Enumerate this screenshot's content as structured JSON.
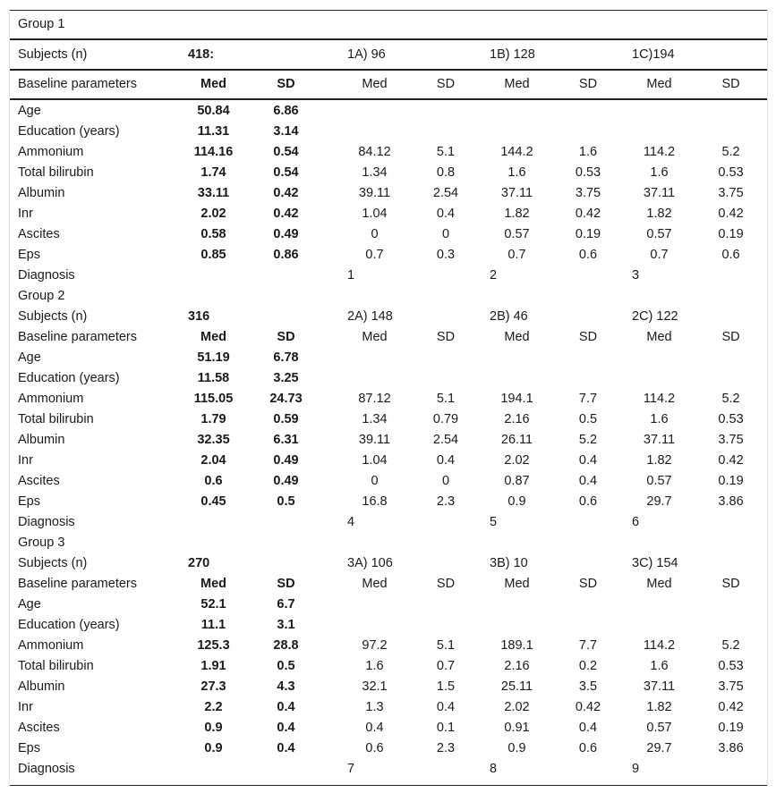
{
  "table": {
    "groups": [
      {
        "title": "Group 1",
        "subjects_label": "Subjects (n)",
        "subjects_total": "418:",
        "subgroups": [
          "1A) 96",
          "1B) 128",
          "1C)194"
        ],
        "header": {
          "label": "Baseline parameters",
          "med": "Med",
          "sd": "SD",
          "sub_med": "Med",
          "sub_sd": "SD"
        },
        "rows": [
          {
            "label": "Age",
            "med": "50.84",
            "sd": "6.86",
            "a_med": "",
            "a_sd": "",
            "b_med": "",
            "b_sd": "",
            "c_med": "",
            "c_sd": ""
          },
          {
            "label": "Education (years)",
            "med": "11.31",
            "sd": "3.14",
            "a_med": "",
            "a_sd": "",
            "b_med": "",
            "b_sd": "",
            "c_med": "",
            "c_sd": ""
          },
          {
            "label": "Ammonium",
            "med": "114.16",
            "sd": "0.54",
            "a_med": "84.12",
            "a_sd": "5.1",
            "b_med": "144.2",
            "b_sd": "1.6",
            "c_med": "114.2",
            "c_sd": "5.2"
          },
          {
            "label": "Total bilirubin",
            "med": "1.74",
            "sd": "0.54",
            "a_med": "1.34",
            "a_sd": "0.8",
            "b_med": "1.6",
            "b_sd": "0.53",
            "c_med": "1.6",
            "c_sd": "0.53"
          },
          {
            "label": "Albumin",
            "med": "33.11",
            "sd": "0.42",
            "a_med": "39.11",
            "a_sd": "2.54",
            "b_med": "37.11",
            "b_sd": "3.75",
            "c_med": "37.11",
            "c_sd": "3.75"
          },
          {
            "label": "Inr",
            "med": "2.02",
            "sd": "0.42",
            "a_med": "1.04",
            "a_sd": "0.4",
            "b_med": "1.82",
            "b_sd": "0.42",
            "c_med": "1.82",
            "c_sd": "0.42"
          },
          {
            "label": "Ascites",
            "med": "0.58",
            "sd": "0.49",
            "a_med": "0",
            "a_sd": "0",
            "b_med": "0.57",
            "b_sd": "0.19",
            "c_med": "0.57",
            "c_sd": "0.19"
          },
          {
            "label": "Eps",
            "med": "0.85",
            "sd": "0.86",
            "a_med": "0.7",
            "a_sd": "0.3",
            "b_med": "0.7",
            "b_sd": "0.6",
            "c_med": "0.7",
            "c_sd": "0.6"
          }
        ],
        "diagnosis": {
          "label": "Diagnosis",
          "a": "1",
          "b": "2",
          "c": "3"
        }
      },
      {
        "title": "Group 2",
        "subjects_label": "Subjects (n)",
        "subjects_total": "316",
        "subgroups": [
          "2A) 148",
          "2B) 46",
          "2C) 122"
        ],
        "header": {
          "label": "Baseline parameters",
          "med": "Med",
          "sd": "SD",
          "sub_med": "Med",
          "sub_sd": "SD"
        },
        "rows": [
          {
            "label": "Age",
            "med": "51.19",
            "sd": "6.78",
            "a_med": "",
            "a_sd": "",
            "b_med": "",
            "b_sd": "",
            "c_med": "",
            "c_sd": ""
          },
          {
            "label": "Education (years)",
            "med": "11.58",
            "sd": "3.25",
            "a_med": "",
            "a_sd": "",
            "b_med": "",
            "b_sd": "",
            "c_med": "",
            "c_sd": ""
          },
          {
            "label": "Ammonium",
            "med": "115.05",
            "sd": "24.73",
            "a_med": "87.12",
            "a_sd": "5.1",
            "b_med": "194.1",
            "b_sd": "7.7",
            "c_med": "114.2",
            "c_sd": "5.2"
          },
          {
            "label": "Total bilirubin",
            "med": "1.79",
            "sd": "0.59",
            "a_med": "1.34",
            "a_sd": "0.79",
            "b_med": "2.16",
            "b_sd": "0.5",
            "c_med": "1.6",
            "c_sd": "0.53"
          },
          {
            "label": "Albumin",
            "med": "32.35",
            "sd": "6.31",
            "a_med": "39.11",
            "a_sd": "2.54",
            "b_med": "26.11",
            "b_sd": "5.2",
            "c_med": "37.11",
            "c_sd": "3.75"
          },
          {
            "label": "Inr",
            "med": "2.04",
            "sd": "0.49",
            "a_med": "1.04",
            "a_sd": "0.4",
            "b_med": "2.02",
            "b_sd": "0.4",
            "c_med": "1.82",
            "c_sd": "0.42"
          },
          {
            "label": "Ascites",
            "med": "0.6",
            "sd": "0.49",
            "a_med": "0",
            "a_sd": "0",
            "b_med": "0.87",
            "b_sd": "0.4",
            "c_med": "0.57",
            "c_sd": "0.19"
          },
          {
            "label": "Eps",
            "med": "0.45",
            "sd": "0.5",
            "a_med": "16.8",
            "a_sd": "2.3",
            "b_med": "0.9",
            "b_sd": "0.6",
            "c_med": "29.7",
            "c_sd": "3.86"
          }
        ],
        "diagnosis": {
          "label": "Diagnosis",
          "a": "4",
          "b": "5",
          "c": "6"
        }
      },
      {
        "title": "Group 3",
        "subjects_label": "Subjects (n)",
        "subjects_total": "270",
        "subgroups": [
          "3A) 106",
          "3B) 10",
          "3C) 154"
        ],
        "header": {
          "label": "Baseline parameters",
          "med": "Med",
          "sd": "SD",
          "sub_med": "Med",
          "sub_sd": "SD"
        },
        "rows": [
          {
            "label": "Age",
            "med": "52.1",
            "sd": "6.7",
            "a_med": "",
            "a_sd": "",
            "b_med": "",
            "b_sd": "",
            "c_med": "",
            "c_sd": ""
          },
          {
            "label": "Education (years)",
            "med": "11.1",
            "sd": "3.1",
            "a_med": "",
            "a_sd": "",
            "b_med": "",
            "b_sd": "",
            "c_med": "",
            "c_sd": ""
          },
          {
            "label": "Ammonium",
            "med": "125.3",
            "sd": "28.8",
            "a_med": "97.2",
            "a_sd": "5.1",
            "b_med": "189.1",
            "b_sd": "7.7",
            "c_med": "114.2",
            "c_sd": "5.2"
          },
          {
            "label": "Total bilirubin",
            "med": "1.91",
            "sd": "0.5",
            "a_med": "1.6",
            "a_sd": "0.7",
            "b_med": "2.16",
            "b_sd": "0.2",
            "c_med": "1.6",
            "c_sd": "0.53"
          },
          {
            "label": "Albumin",
            "med": "27.3",
            "sd": "4.3",
            "a_med": "32.1",
            "a_sd": "1.5",
            "b_med": "25.11",
            "b_sd": "3.5",
            "c_med": "37.11",
            "c_sd": "3.75"
          },
          {
            "label": "Inr",
            "med": "2.2",
            "sd": "0.4",
            "a_med": "1.3",
            "a_sd": "0.4",
            "b_med": "2.02",
            "b_sd": "0.42",
            "c_med": "1.82",
            "c_sd": "0.42"
          },
          {
            "label": "Ascites",
            "med": "0.9",
            "sd": "0.4",
            "a_med": "0.4",
            "a_sd": "0.1",
            "b_med": "0.91",
            "b_sd": "0.4",
            "c_med": "0.57",
            "c_sd": "0.19"
          },
          {
            "label": "Eps",
            "med": "0.9",
            "sd": "0.4",
            "a_med": "0.6",
            "a_sd": "2.3",
            "b_med": "0.9",
            "b_sd": "0.6",
            "c_med": "29.7",
            "c_sd": "3.86"
          }
        ],
        "diagnosis": {
          "label": "Diagnosis",
          "a": "7",
          "b": "8",
          "c": "9"
        }
      }
    ]
  }
}
